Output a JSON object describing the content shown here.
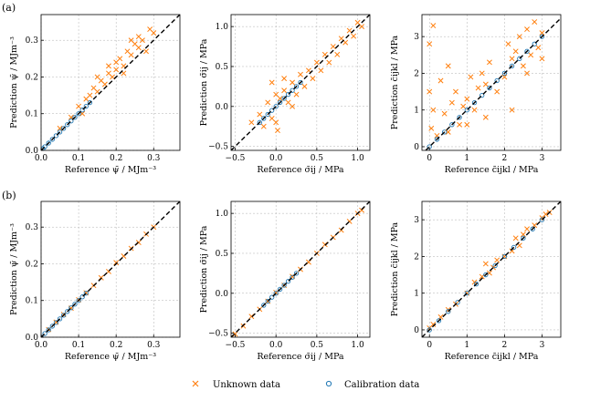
{
  "figure": {
    "row_labels": [
      "(a)",
      "(b)"
    ],
    "colors": {
      "unknown": "#ff7f0e",
      "calibration": "#1f77b4",
      "identity": "#000000",
      "grid": "#b0b0b0"
    }
  },
  "legend": {
    "items": [
      {
        "label": "Unknown data",
        "marker": "x",
        "color": "#ff7f0e"
      },
      {
        "label": "Calibration data",
        "marker": "circle",
        "color": "#1f77b4"
      }
    ]
  },
  "panels": [
    {
      "id": "a1",
      "row": 0,
      "col": 0
    },
    {
      "id": "a2",
      "row": 0,
      "col": 1
    },
    {
      "id": "a3",
      "row": 0,
      "col": 2
    },
    {
      "id": "b1",
      "row": 1,
      "col": 0
    },
    {
      "id": "b2",
      "row": 1,
      "col": 1
    },
    {
      "id": "b3",
      "row": 1,
      "col": 2
    }
  ],
  "chart_data": [
    {
      "type": "scatter",
      "panel": "a1",
      "xlabel": "Reference ψ̄ / MJm⁻³",
      "ylabel": "Prediction ψ̄ / MJm⁻³",
      "xlim": [
        0,
        0.37
      ],
      "ylim": [
        0,
        0.37
      ],
      "xticks": [
        0.0,
        0.1,
        0.2,
        0.3
      ],
      "xtick_labels": [
        "0.0",
        "0.1",
        "0.2",
        "0.3"
      ],
      "yticks": [
        0.0,
        0.1,
        0.2,
        0.3
      ],
      "ytick_labels": [
        "0.0",
        "0.1",
        "0.2",
        "0.3"
      ],
      "identity_line": true,
      "grid": true,
      "series": [
        {
          "name": "Unknown data",
          "marker": "x",
          "x": [
            0.05,
            0.08,
            0.1,
            0.12,
            0.14,
            0.15,
            0.16,
            0.17,
            0.18,
            0.19,
            0.2,
            0.2,
            0.21,
            0.22,
            0.23,
            0.24,
            0.25,
            0.26,
            0.27,
            0.28,
            0.29,
            0.3,
            0.15,
            0.18,
            0.22,
            0.26,
            0.11,
            0.13,
            0.24
          ],
          "y": [
            0.06,
            0.09,
            0.12,
            0.14,
            0.17,
            0.16,
            0.19,
            0.18,
            0.21,
            0.2,
            0.24,
            0.22,
            0.25,
            0.23,
            0.27,
            0.26,
            0.29,
            0.28,
            0.3,
            0.27,
            0.33,
            0.32,
            0.2,
            0.23,
            0.21,
            0.31,
            0.1,
            0.15,
            0.3
          ]
        },
        {
          "name": "Calibration data",
          "marker": "circle",
          "x": [
            0.0,
            0.005,
            0.01,
            0.02,
            0.03,
            0.04,
            0.05,
            0.06,
            0.07,
            0.08,
            0.09,
            0.1,
            0.11,
            0.12,
            0.13
          ],
          "y": [
            0.0,
            0.005,
            0.01,
            0.02,
            0.03,
            0.04,
            0.05,
            0.06,
            0.07,
            0.08,
            0.09,
            0.1,
            0.11,
            0.12,
            0.13
          ]
        }
      ]
    },
    {
      "type": "scatter",
      "panel": "a2",
      "xlabel": "Reference σ̄ij / MPa",
      "ylabel": "Prediction σ̄ij / MPa",
      "xlim": [
        -0.55,
        1.15
      ],
      "ylim": [
        -0.55,
        1.15
      ],
      "xticks": [
        -0.5,
        0.0,
        0.5,
        1.0
      ],
      "xtick_labels": [
        "−0.5",
        "0.0",
        "0.5",
        "1.0"
      ],
      "yticks": [
        -0.5,
        0.0,
        0.5,
        1.0
      ],
      "ytick_labels": [
        "−0.5",
        "0.0",
        "0.5",
        "1.0"
      ],
      "identity_line": true,
      "grid": true,
      "series": [
        {
          "name": "Unknown data",
          "marker": "x",
          "x": [
            -0.3,
            -0.2,
            -0.15,
            -0.1,
            -0.05,
            0.0,
            0.0,
            0.05,
            0.1,
            0.15,
            0.2,
            0.25,
            0.3,
            0.35,
            0.4,
            0.45,
            0.5,
            0.55,
            0.6,
            0.65,
            0.7,
            0.75,
            0.8,
            0.85,
            0.9,
            0.95,
            1.0,
            1.05,
            -0.05,
            0.02,
            0.1,
            0.2
          ],
          "y": [
            -0.2,
            -0.1,
            -0.25,
            0.05,
            -0.15,
            0.15,
            -0.2,
            0.1,
            0.2,
            0.05,
            0.3,
            0.15,
            0.4,
            0.25,
            0.45,
            0.35,
            0.55,
            0.45,
            0.65,
            0.55,
            0.75,
            0.65,
            0.85,
            0.8,
            0.95,
            0.88,
            1.05,
            1.0,
            0.3,
            -0.3,
            0.35,
            0.0
          ]
        },
        {
          "name": "Calibration data",
          "marker": "circle",
          "x": [
            -0.2,
            -0.15,
            -0.1,
            -0.05,
            0.0,
            0.05,
            0.1,
            0.15,
            0.2,
            0.25,
            0.3
          ],
          "y": [
            -0.2,
            -0.15,
            -0.1,
            -0.05,
            0.0,
            0.05,
            0.1,
            0.15,
            0.2,
            0.25,
            0.3
          ]
        }
      ]
    },
    {
      "type": "scatter",
      "panel": "a3",
      "xlabel": "Reference c̄ijkl / MPa",
      "ylabel": "Prediction c̄ijkl / MPa",
      "xlim": [
        -0.2,
        3.5
      ],
      "ylim": [
        -0.1,
        3.6
      ],
      "xticks": [
        0,
        1,
        2,
        3
      ],
      "xtick_labels": [
        "0",
        "1",
        "2",
        "3"
      ],
      "yticks": [
        0,
        1,
        2,
        3
      ],
      "ytick_labels": [
        "0",
        "1",
        "2",
        "3"
      ],
      "identity_line": true,
      "grid": true,
      "series": [
        {
          "name": "Unknown data",
          "marker": "x",
          "x": [
            0.0,
            0.0,
            0.05,
            0.1,
            0.1,
            0.2,
            0.3,
            0.4,
            0.5,
            0.6,
            0.7,
            0.8,
            0.9,
            1.0,
            1.1,
            1.2,
            1.3,
            1.4,
            1.5,
            1.5,
            1.6,
            1.8,
            2.0,
            2.1,
            2.2,
            2.2,
            2.3,
            2.4,
            2.5,
            2.6,
            2.7,
            2.8,
            2.9,
            3.0,
            3.0,
            2.6,
            1.0,
            0.5
          ],
          "y": [
            1.5,
            2.8,
            0.5,
            3.3,
            1.0,
            0.3,
            1.8,
            0.9,
            0.4,
            1.2,
            1.5,
            0.6,
            1.1,
            1.3,
            1.9,
            1.0,
            1.6,
            2.0,
            0.8,
            1.7,
            2.3,
            1.5,
            1.9,
            2.8,
            1.0,
            2.4,
            2.6,
            3.0,
            2.2,
            3.2,
            2.5,
            3.4,
            2.7,
            3.1,
            2.4,
            2.0,
            0.6,
            2.2
          ]
        },
        {
          "name": "Calibration data",
          "marker": "circle",
          "x": [
            0.0,
            0.2,
            0.4,
            0.6,
            0.8,
            1.0,
            1.2,
            1.4,
            1.6,
            1.8,
            2.0,
            2.2,
            2.4,
            2.6,
            2.8,
            3.0
          ],
          "y": [
            0.0,
            0.2,
            0.4,
            0.6,
            0.8,
            1.0,
            1.2,
            1.4,
            1.6,
            1.8,
            2.0,
            2.2,
            2.4,
            2.6,
            2.8,
            3.0
          ]
        }
      ]
    },
    {
      "type": "scatter",
      "panel": "b1",
      "xlabel": "Reference ψ̄ / MJm⁻³",
      "ylabel": "Prediction ψ̄ / MJm⁻³",
      "xlim": [
        0,
        0.37
      ],
      "ylim": [
        0,
        0.37
      ],
      "xticks": [
        0.0,
        0.1,
        0.2,
        0.3
      ],
      "xtick_labels": [
        "0.0",
        "0.1",
        "0.2",
        "0.3"
      ],
      "yticks": [
        0.0,
        0.1,
        0.2,
        0.3
      ],
      "ytick_labels": [
        "0.0",
        "0.1",
        "0.2",
        "0.3"
      ],
      "identity_line": true,
      "grid": true,
      "series": [
        {
          "name": "Unknown data",
          "marker": "x",
          "x": [
            0.02,
            0.04,
            0.06,
            0.08,
            0.1,
            0.12,
            0.14,
            0.16,
            0.18,
            0.2,
            0.22,
            0.24,
            0.26,
            0.28,
            0.3
          ],
          "y": [
            0.021,
            0.041,
            0.062,
            0.079,
            0.102,
            0.121,
            0.141,
            0.162,
            0.179,
            0.203,
            0.221,
            0.242,
            0.258,
            0.281,
            0.3
          ]
        },
        {
          "name": "Calibration data",
          "marker": "circle",
          "x": [
            0.0,
            0.01,
            0.02,
            0.03,
            0.04,
            0.05,
            0.06,
            0.07,
            0.08,
            0.09,
            0.1,
            0.11,
            0.12
          ],
          "y": [
            0.0,
            0.01,
            0.02,
            0.03,
            0.04,
            0.05,
            0.06,
            0.07,
            0.08,
            0.09,
            0.1,
            0.11,
            0.12
          ]
        }
      ]
    },
    {
      "type": "scatter",
      "panel": "b2",
      "xlabel": "Reference σ̄ij / MPa",
      "ylabel": "Prediction σ̄ij / MPa",
      "xlim": [
        -0.55,
        1.15
      ],
      "ylim": [
        -0.55,
        1.15
      ],
      "xticks": [
        -0.5,
        0.0,
        0.5,
        1.0
      ],
      "xtick_labels": [
        "−0.5",
        "0.0",
        "0.5",
        "1.0"
      ],
      "yticks": [
        -0.5,
        0.0,
        0.5,
        1.0
      ],
      "ytick_labels": [
        "−0.5",
        "0.0",
        "0.5",
        "1.0"
      ],
      "identity_line": true,
      "grid": true,
      "series": [
        {
          "name": "Unknown data",
          "marker": "x",
          "x": [
            -0.5,
            -0.4,
            -0.3,
            -0.2,
            -0.1,
            0.0,
            0.1,
            0.2,
            0.3,
            0.4,
            0.5,
            0.6,
            0.7,
            0.8,
            0.9,
            1.0,
            1.05
          ],
          "y": [
            -0.51,
            -0.41,
            -0.29,
            -0.2,
            -0.1,
            0.01,
            0.1,
            0.21,
            0.3,
            0.39,
            0.5,
            0.61,
            0.7,
            0.79,
            0.9,
            1.0,
            1.04
          ]
        },
        {
          "name": "Calibration data",
          "marker": "circle",
          "x": [
            -0.15,
            -0.1,
            -0.05,
            0.0,
            0.05,
            0.1,
            0.15,
            0.2,
            0.25
          ],
          "y": [
            -0.15,
            -0.1,
            -0.05,
            0.0,
            0.05,
            0.1,
            0.15,
            0.2,
            0.25
          ]
        }
      ]
    },
    {
      "type": "scatter",
      "panel": "b3",
      "xlabel": "Reference c̄ijkl / MPa",
      "ylabel": "Prediction c̄ijkl / MPa",
      "xlim": [
        -0.2,
        3.5
      ],
      "ylim": [
        -0.2,
        3.5
      ],
      "xticks": [
        0,
        1,
        2,
        3
      ],
      "xtick_labels": [
        "0",
        "1",
        "2",
        "3"
      ],
      "yticks": [
        0,
        1,
        2,
        3
      ],
      "ytick_labels": [
        "0",
        "1",
        "2",
        "3"
      ],
      "identity_line": true,
      "grid": true,
      "series": [
        {
          "name": "Unknown data",
          "marker": "x",
          "x": [
            0.0,
            0.1,
            0.3,
            0.5,
            0.7,
            1.0,
            1.2,
            1.4,
            1.5,
            1.6,
            1.7,
            1.8,
            2.0,
            2.2,
            2.3,
            2.4,
            2.5,
            2.6,
            2.8,
            3.0,
            3.1,
            3.2
          ],
          "y": [
            0.05,
            0.15,
            0.35,
            0.55,
            0.7,
            1.0,
            1.3,
            1.45,
            1.8,
            1.55,
            1.7,
            1.9,
            2.0,
            2.15,
            2.5,
            2.3,
            2.6,
            2.75,
            2.85,
            3.05,
            3.15,
            3.2
          ]
        },
        {
          "name": "Calibration data",
          "marker": "circle",
          "x": [
            0.0,
            0.25,
            0.5,
            0.75,
            1.0,
            1.25,
            1.5,
            1.75,
            2.0,
            2.25,
            2.5,
            2.75,
            3.0
          ],
          "y": [
            0.0,
            0.25,
            0.5,
            0.75,
            1.0,
            1.25,
            1.5,
            1.75,
            2.0,
            2.25,
            2.5,
            2.75,
            3.0
          ]
        }
      ]
    }
  ]
}
